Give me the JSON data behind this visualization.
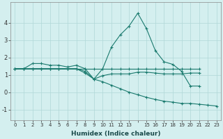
{
  "xlabel": "Humidex (Indice chaleur)",
  "ylabel": "",
  "background_color": "#d4efef",
  "grid_color": "#b0d8d8",
  "line_color": "#1a7a6e",
  "xlim": [
    -0.5,
    23.5
  ],
  "ylim": [
    -1.6,
    5.2
  ],
  "yticks": [
    -1,
    0,
    1,
    2,
    3,
    4
  ],
  "xtick_labels": [
    "0",
    "1",
    "2",
    "3",
    "4",
    "5",
    "6",
    "7",
    "8",
    "9",
    "10",
    "11",
    "12",
    "13",
    "",
    "15",
    "16",
    "17",
    "18",
    "19",
    "20",
    "21",
    "22",
    "23"
  ],
  "xtick_positions": [
    0,
    1,
    2,
    3,
    4,
    5,
    6,
    7,
    8,
    9,
    10,
    11,
    12,
    13,
    14,
    15,
    16,
    17,
    18,
    19,
    20,
    21,
    22,
    23
  ],
  "series": [
    {
      "x": [
        0,
        1,
        2,
        3,
        4,
        5,
        6,
        7,
        8,
        9,
        10,
        11,
        12,
        13,
        14,
        15,
        16,
        17,
        18,
        19,
        20,
        21
      ],
      "y": [
        1.35,
        1.35,
        1.65,
        1.65,
        1.55,
        1.55,
        1.45,
        1.55,
        1.35,
        0.75,
        1.35,
        2.6,
        3.3,
        3.8,
        4.55,
        3.65,
        2.4,
        1.75,
        1.6,
        1.2,
        0.35,
        0.35
      ]
    },
    {
      "x": [
        0,
        1,
        2,
        3,
        4,
        5,
        6,
        7,
        8,
        9,
        10,
        11,
        12,
        13,
        14,
        15,
        16,
        17,
        18,
        19,
        20,
        21
      ],
      "y": [
        1.35,
        1.35,
        1.35,
        1.35,
        1.35,
        1.35,
        1.35,
        1.35,
        1.35,
        1.35,
        1.35,
        1.35,
        1.35,
        1.35,
        1.35,
        1.35,
        1.35,
        1.35,
        1.35,
        1.35,
        1.35,
        1.35
      ]
    },
    {
      "x": [
        0,
        1,
        2,
        3,
        4,
        5,
        6,
        7,
        8,
        9,
        10,
        11,
        12,
        13,
        14,
        15,
        16,
        17,
        18,
        19,
        20,
        21
      ],
      "y": [
        1.35,
        1.35,
        1.35,
        1.35,
        1.35,
        1.35,
        1.35,
        1.35,
        1.2,
        0.75,
        0.95,
        1.05,
        1.05,
        1.05,
        1.15,
        1.15,
        1.1,
        1.05,
        1.05,
        1.05,
        1.1,
        1.1
      ]
    },
    {
      "x": [
        0,
        1,
        2,
        3,
        4,
        5,
        6,
        7,
        8,
        9,
        10,
        11,
        12,
        13,
        14,
        15,
        16,
        17,
        18,
        19,
        20,
        21,
        22,
        23
      ],
      "y": [
        1.35,
        1.35,
        1.35,
        1.35,
        1.35,
        1.35,
        1.35,
        1.35,
        1.1,
        0.75,
        0.6,
        0.4,
        0.2,
        0.0,
        -0.15,
        -0.3,
        -0.42,
        -0.52,
        -0.58,
        -0.65,
        -0.65,
        -0.7,
        -0.75,
        -0.8
      ]
    }
  ]
}
